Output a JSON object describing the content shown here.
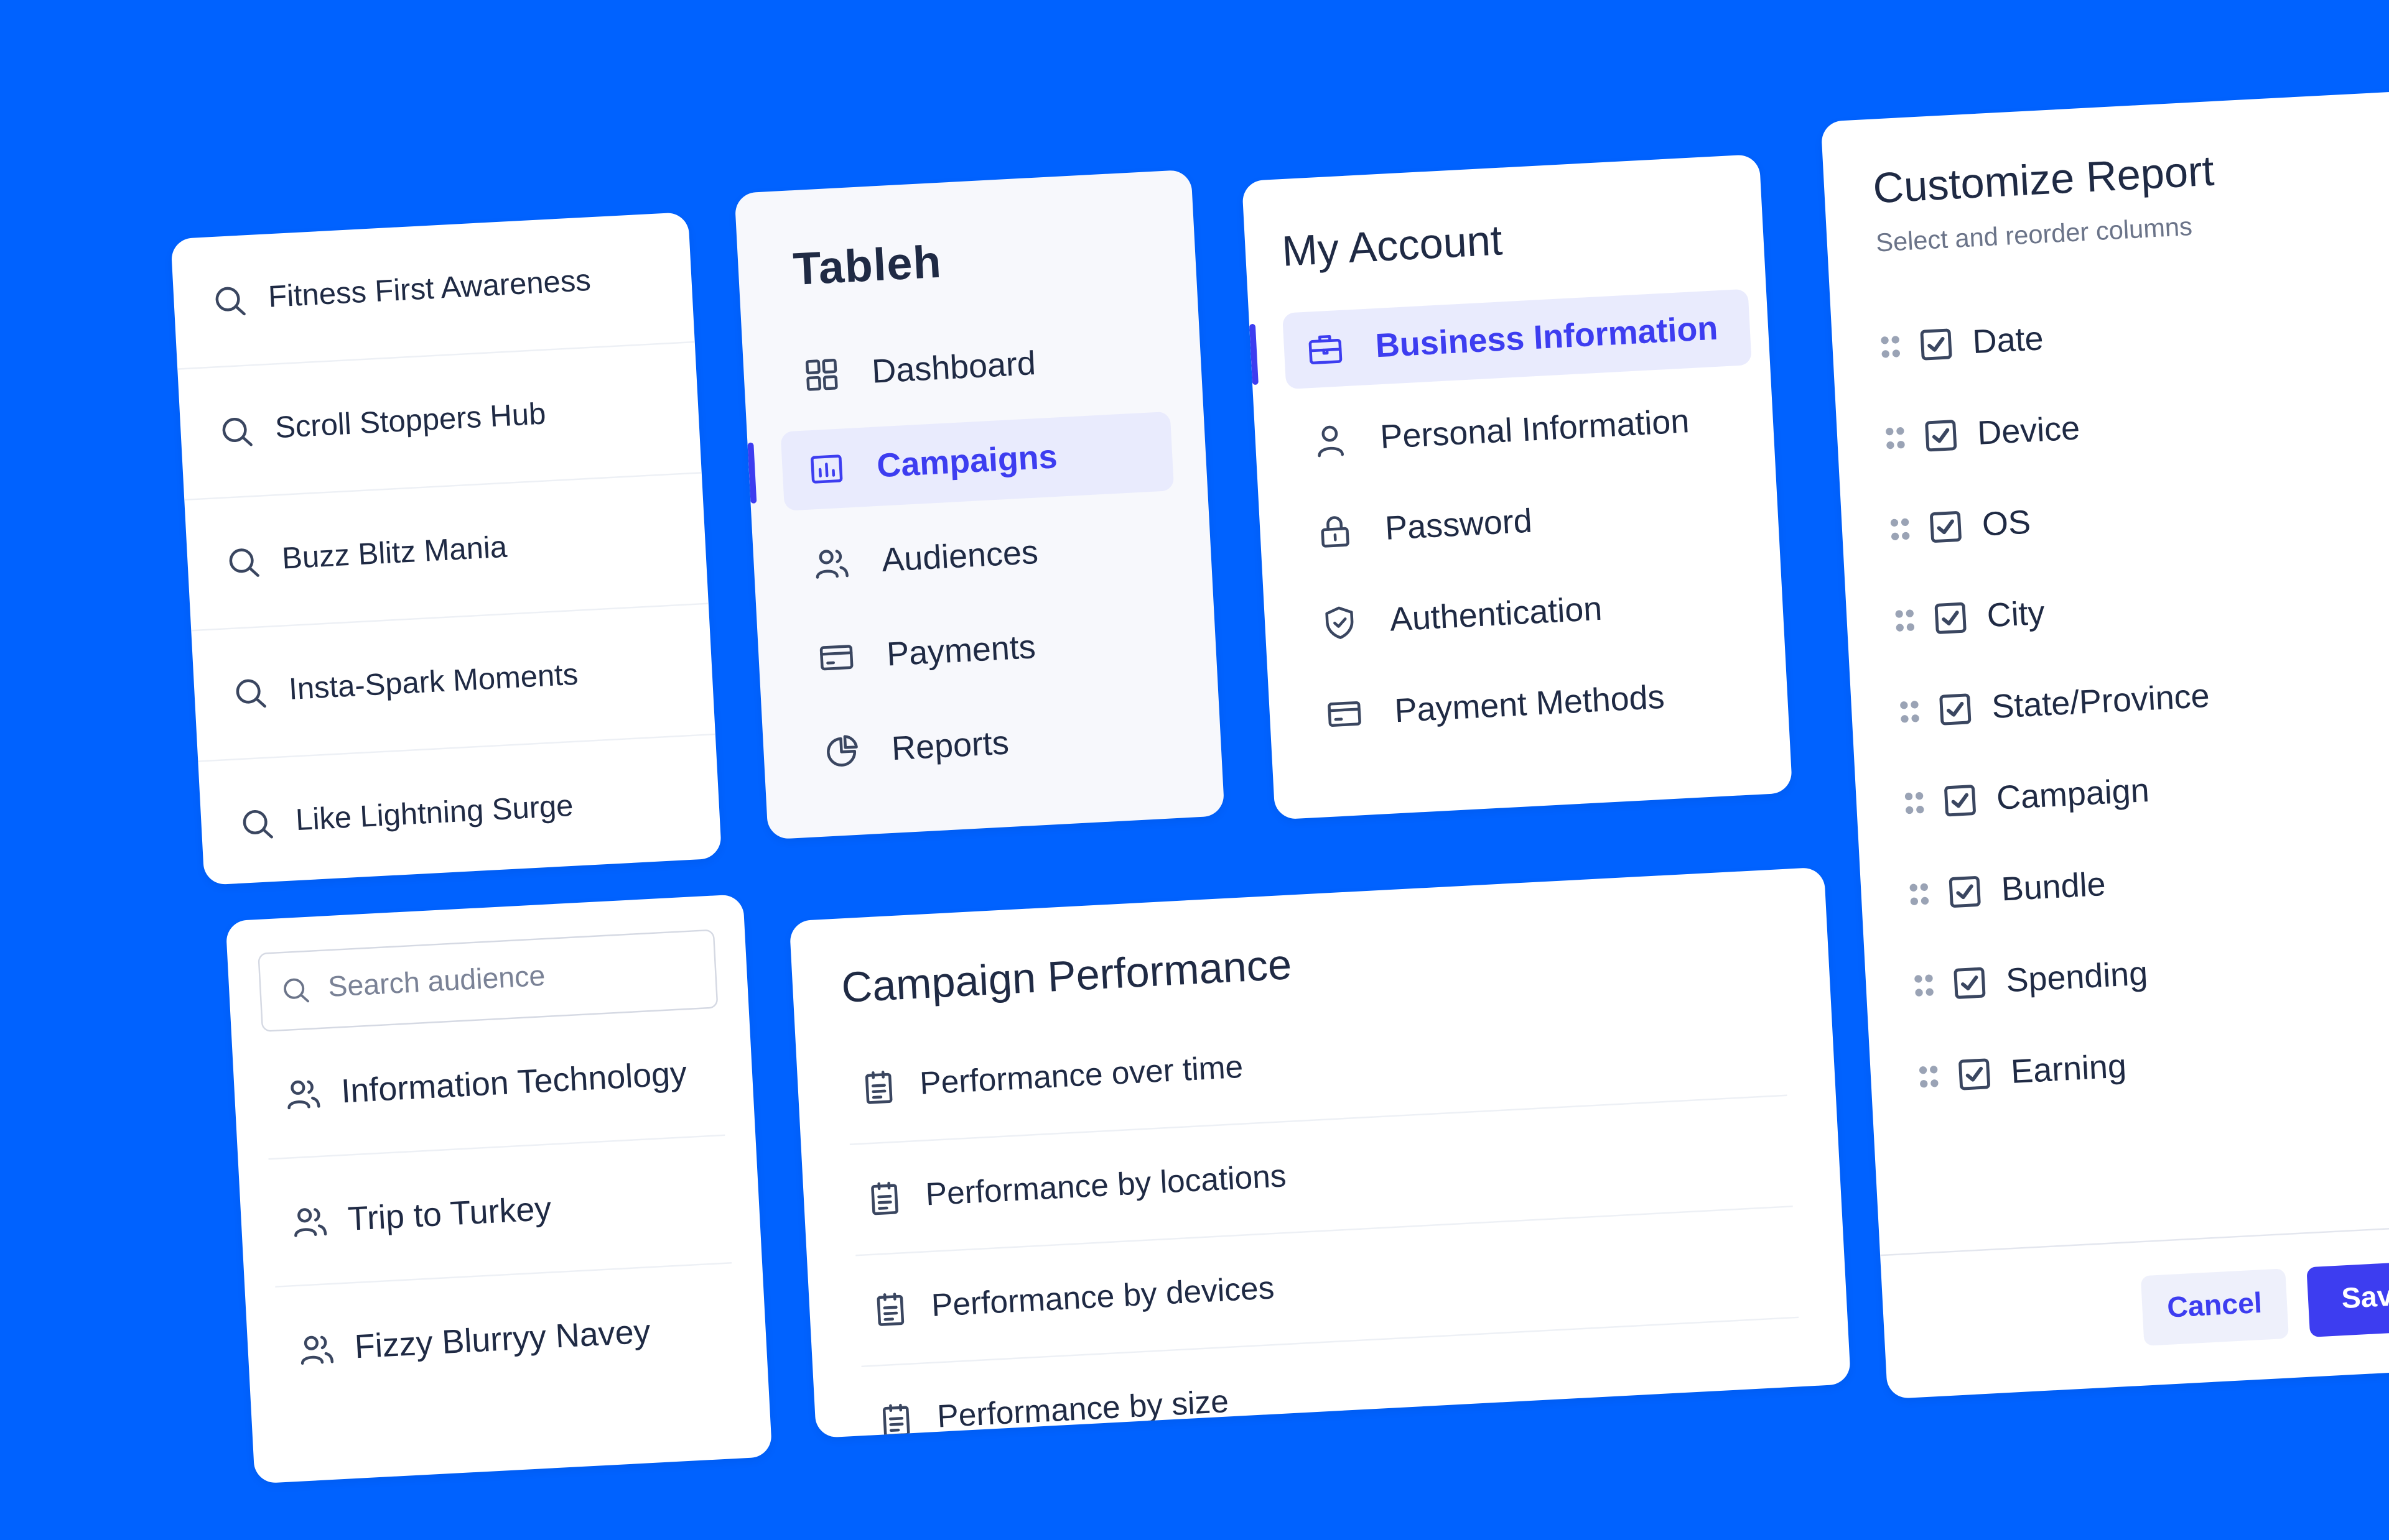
{
  "campaigns": {
    "items": [
      {
        "label": "Fitness First Awareness"
      },
      {
        "label": "Scroll Stoppers Hub"
      },
      {
        "label": "Buzz Blitz Mania"
      },
      {
        "label": "Insta-Spark Moments"
      },
      {
        "label": "Like Lightning Surge"
      }
    ]
  },
  "nav": {
    "brand": "Tableh",
    "items": [
      {
        "label": "Dashboard",
        "icon": "dashboard-icon",
        "active": false
      },
      {
        "label": "Campaigns",
        "icon": "chart-icon",
        "active": true
      },
      {
        "label": "Audiences",
        "icon": "users-icon",
        "active": false
      },
      {
        "label": "Payments",
        "icon": "card-icon",
        "active": false
      },
      {
        "label": "Reports",
        "icon": "pie-chart-icon",
        "active": false
      }
    ]
  },
  "account": {
    "title": "My Account",
    "items": [
      {
        "label": "Business Information",
        "icon": "briefcase-icon",
        "active": true
      },
      {
        "label": "Personal Information",
        "icon": "user-icon",
        "active": false
      },
      {
        "label": "Password",
        "icon": "lock-icon",
        "active": false
      },
      {
        "label": "Authentication",
        "icon": "shield-icon",
        "active": false
      },
      {
        "label": "Payment Methods",
        "icon": "card-icon",
        "active": false
      }
    ]
  },
  "report": {
    "title": "Customize Report",
    "subtitle": "Select and reorder columns",
    "columns": [
      {
        "label": "Date",
        "checked": true
      },
      {
        "label": "Device",
        "checked": true
      },
      {
        "label": "OS",
        "checked": true
      },
      {
        "label": "City",
        "checked": true
      },
      {
        "label": "State/Province",
        "checked": true
      },
      {
        "label": "Campaign",
        "checked": true
      },
      {
        "label": "Bundle",
        "checked": true
      },
      {
        "label": "Spending",
        "checked": true
      },
      {
        "label": "Earning",
        "checked": true
      }
    ],
    "cancel_label": "Cancel",
    "save_label": "Save Cl"
  },
  "audience": {
    "search_placeholder": "Search audience",
    "items": [
      {
        "label": "Information Technology"
      },
      {
        "label": "Trip to Turkey"
      },
      {
        "label": "Fizzy Blurryy Navey"
      }
    ]
  },
  "performance": {
    "title": "Campaign Performance",
    "items": [
      {
        "label": "Performance over time"
      },
      {
        "label": "Performance by locations"
      },
      {
        "label": "Performance by devices"
      },
      {
        "label": "Performance by size"
      }
    ]
  },
  "colors": {
    "background": "#0062FF",
    "accent": "#3D3DF0",
    "text": "#1F2A44"
  }
}
